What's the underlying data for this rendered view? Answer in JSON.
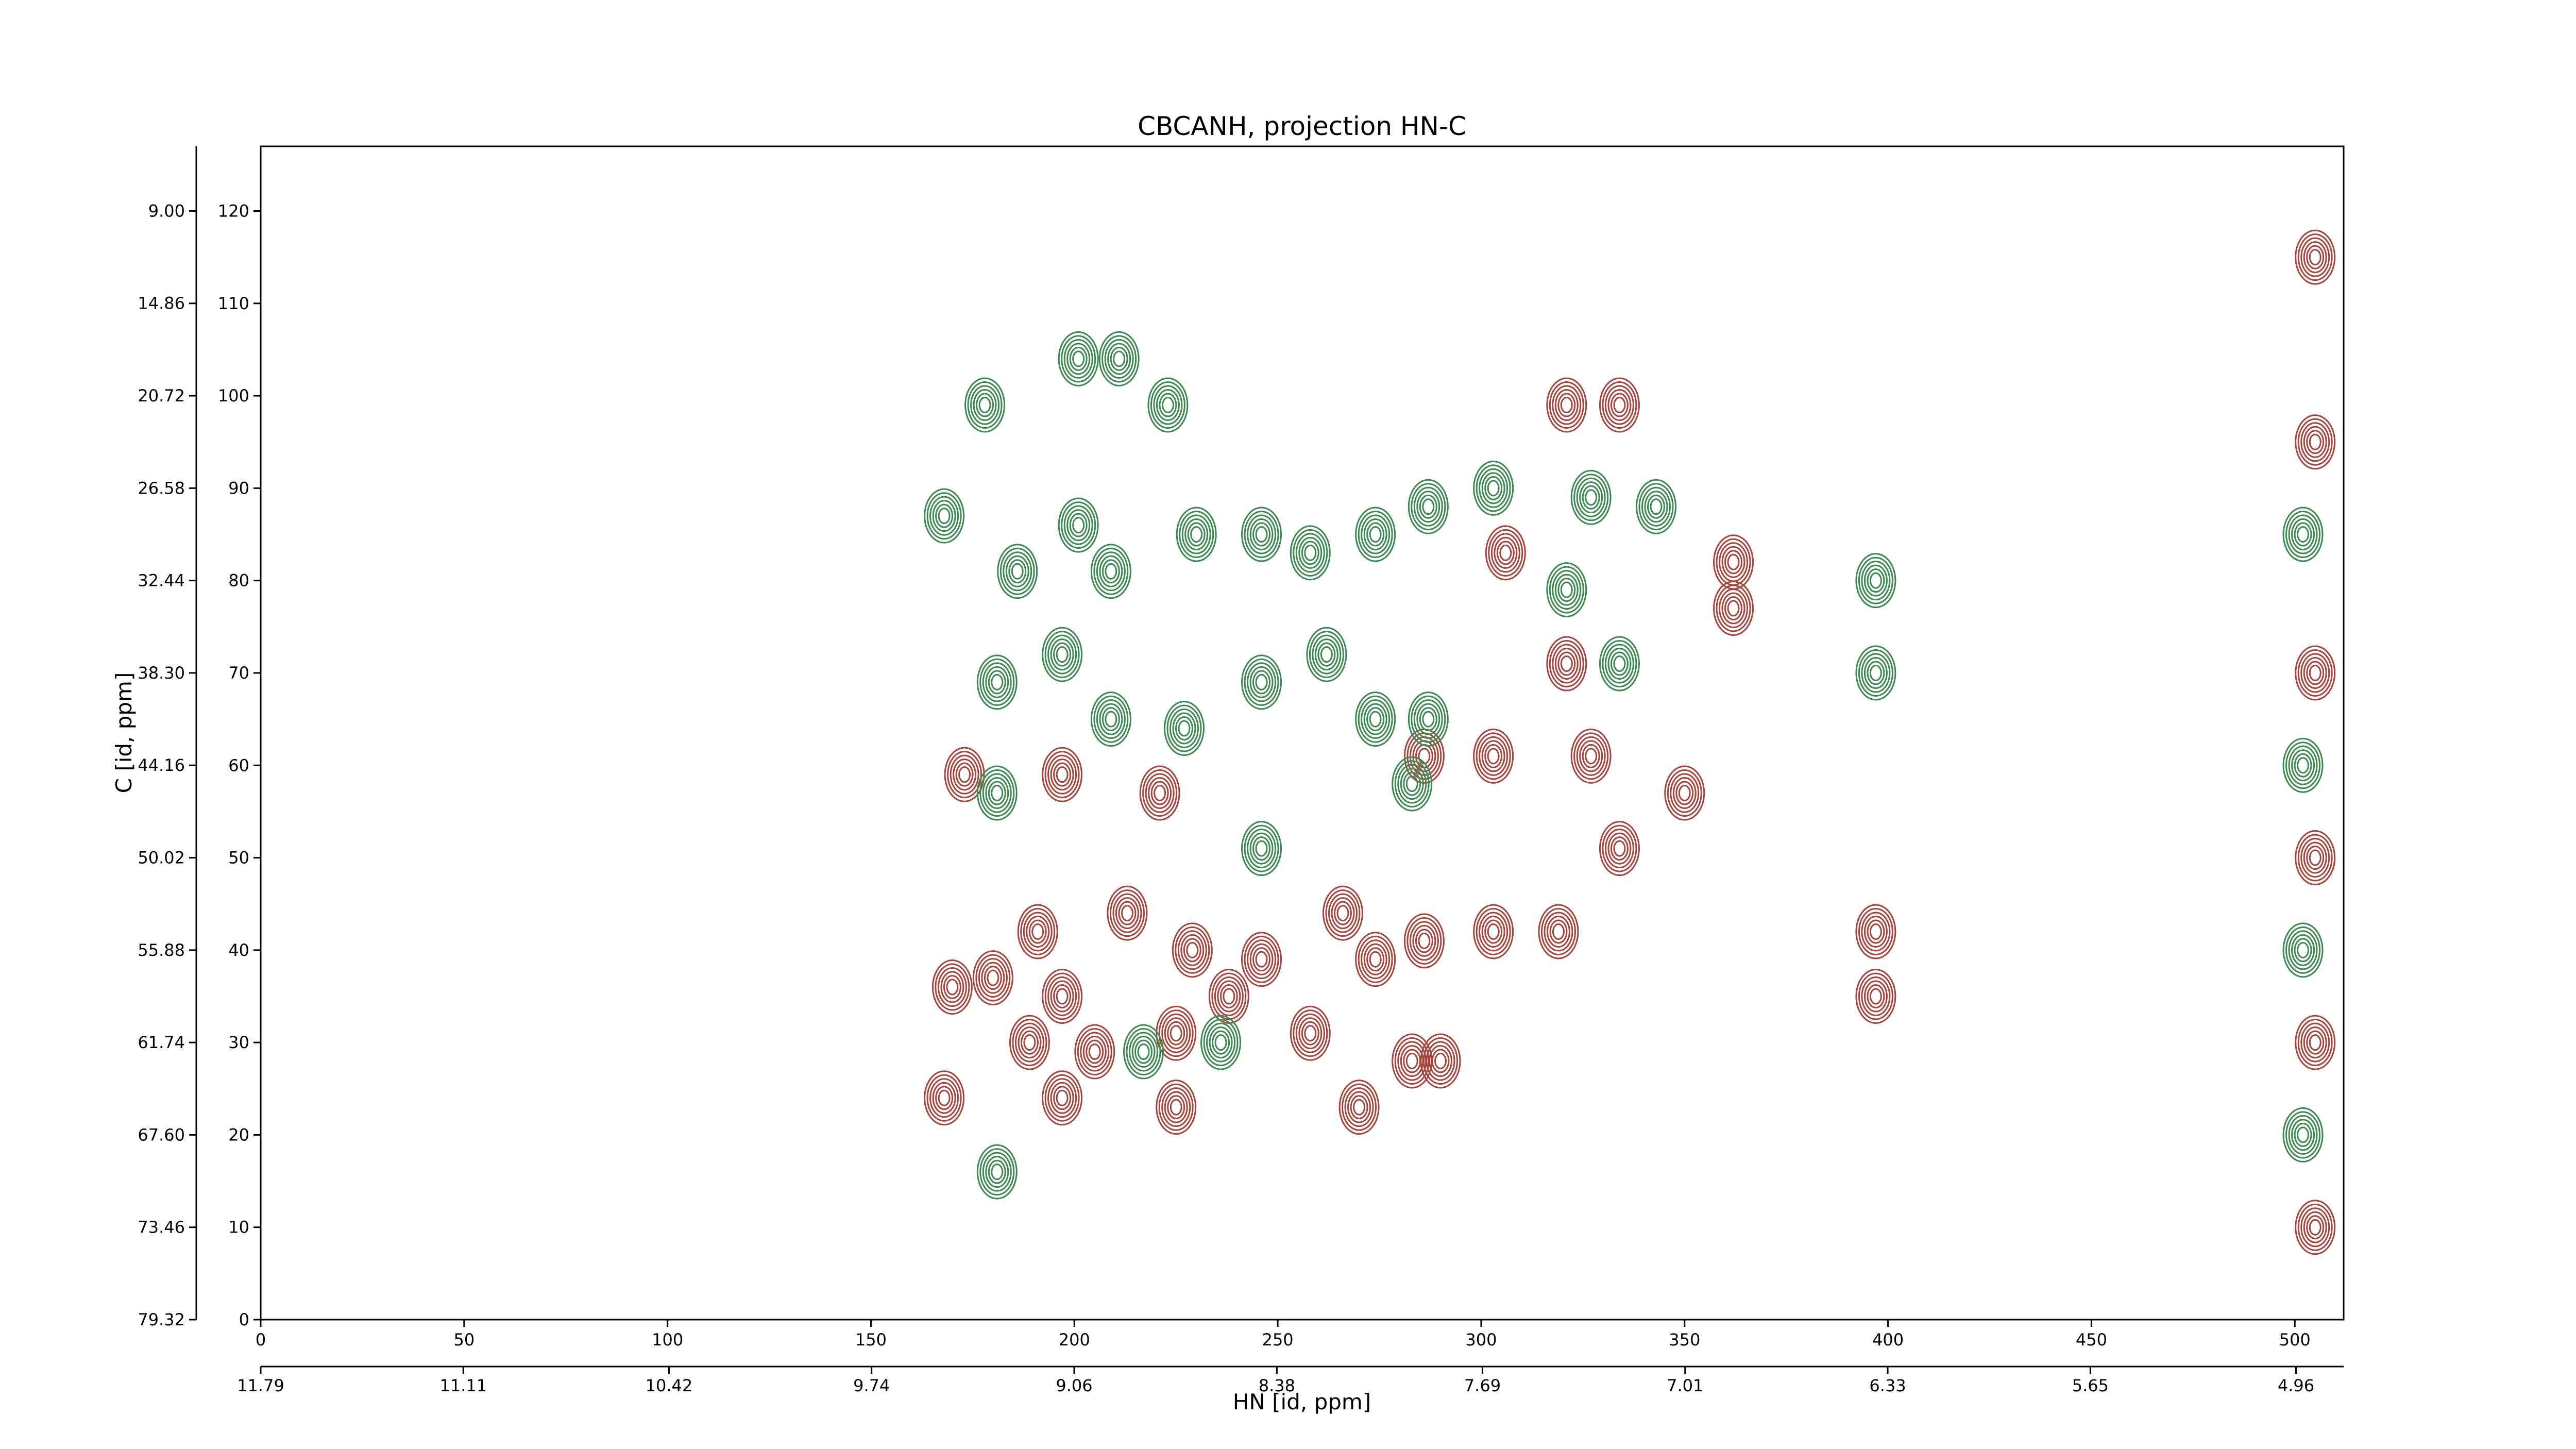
{
  "chart_data": {
    "type": "contour",
    "title": "CBCANH, projection HN-C",
    "x_label": "HN [id, ppm]",
    "y_label": "C [id, ppm]",
    "xlim": [
      0,
      512
    ],
    "xticks": [
      0,
      50,
      100,
      150,
      200,
      250,
      300,
      350,
      400,
      450,
      500
    ],
    "x2lim": [
      11.79,
      4.8
    ],
    "x2ticks": [
      {
        "value": 11.79,
        "label": "11.79"
      },
      {
        "value": 11.11,
        "label": "11.11"
      },
      {
        "value": 10.42,
        "label": "10.42"
      },
      {
        "value": 9.74,
        "label": "9.74"
      },
      {
        "value": 9.06,
        "label": "9.06"
      },
      {
        "value": 8.38,
        "label": "8.38"
      },
      {
        "value": 7.69,
        "label": "7.69"
      },
      {
        "value": 7.01,
        "label": "7.01"
      },
      {
        "value": 6.33,
        "label": "6.33"
      },
      {
        "value": 5.65,
        "label": "5.65"
      },
      {
        "value": 4.96,
        "label": "4.96"
      }
    ],
    "ylim": [
      0,
      127
    ],
    "yticks": [
      0,
      10,
      20,
      30,
      40,
      50,
      60,
      70,
      80,
      90,
      100,
      110,
      120
    ],
    "y2lim": [
      79.32,
      4.9
    ],
    "y2ticks": [
      {
        "value": 79.32,
        "label": "79.32"
      },
      {
        "value": 73.46,
        "label": "73.46"
      },
      {
        "value": 67.6,
        "label": "67.60"
      },
      {
        "value": 61.74,
        "label": "61.74"
      },
      {
        "value": 55.88,
        "label": "55.88"
      },
      {
        "value": 50.02,
        "label": "50.02"
      },
      {
        "value": 44.16,
        "label": "44.16"
      },
      {
        "value": 38.3,
        "label": "38.30"
      },
      {
        "value": 32.44,
        "label": "32.44"
      },
      {
        "value": 26.58,
        "label": "26.58"
      },
      {
        "value": 20.72,
        "label": "20.72"
      },
      {
        "value": 14.86,
        "label": "14.86"
      },
      {
        "value": 9.0,
        "label": "9.00"
      }
    ],
    "series": [
      {
        "color": "#a8433b",
        "x": [
          170,
          180,
          191,
          197,
          213,
          229,
          246,
          238,
          266,
          274,
          286,
          303,
          319,
          189,
          205,
          225,
          258,
          283,
          290,
          168,
          197,
          225,
          270,
          397,
          397,
          197,
          221,
          286,
          303,
          327,
          350,
          306,
          362,
          362,
          334,
          321,
          173,
          321,
          334,
          505,
          505,
          505,
          505,
          505,
          505
        ],
        "y": [
          36,
          37,
          42,
          35,
          44,
          40,
          39,
          35,
          44,
          39,
          41,
          42,
          42,
          30,
          29,
          31,
          31,
          28,
          28,
          24,
          24,
          23,
          23,
          42,
          35,
          59,
          57,
          61,
          61,
          61,
          57,
          83,
          82,
          77,
          99,
          99,
          59,
          71,
          51,
          10,
          30,
          50,
          70,
          95,
          115
        ]
      },
      {
        "color": "#3a8a50",
        "x": [
          168,
          201,
          211,
          178,
          223,
          186,
          201,
          209,
          230,
          246,
          258,
          274,
          287,
          303,
          327,
          343,
          181,
          197,
          209,
          227,
          246,
          262,
          274,
          287,
          321,
          334,
          397,
          397,
          283,
          181,
          246,
          236,
          181,
          217,
          502,
          502,
          502,
          502
        ],
        "y": [
          87,
          104,
          104,
          99,
          99,
          81,
          86,
          81,
          85,
          85,
          83,
          85,
          88,
          90,
          89,
          88,
          69,
          72,
          65,
          64,
          69,
          72,
          65,
          65,
          79,
          71,
          70,
          80,
          58,
          57,
          51,
          30,
          16,
          29,
          20,
          40,
          60,
          85
        ]
      }
    ]
  }
}
